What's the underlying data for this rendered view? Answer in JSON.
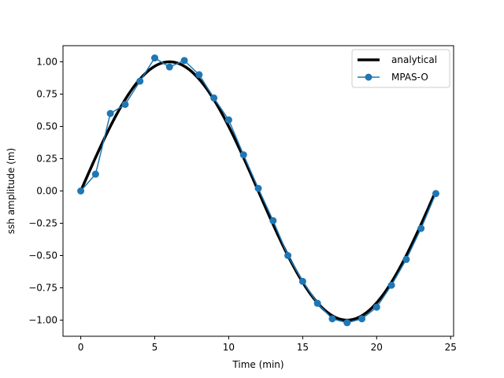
{
  "chart_data": {
    "type": "line",
    "title": "",
    "xlabel": "Time (min)",
    "ylabel": "ssh amplitude (m)",
    "xlim": [
      -1.2,
      25.2
    ],
    "ylim": [
      -1.125,
      1.125
    ],
    "xticks": [
      0,
      5,
      10,
      15,
      20,
      25
    ],
    "xtick_labels": [
      "0",
      "5",
      "10",
      "15",
      "20",
      "25"
    ],
    "yticks": [
      -1.0,
      -0.75,
      -0.5,
      -0.25,
      0.0,
      0.25,
      0.5,
      0.75,
      1.0
    ],
    "ytick_labels": [
      "−1.00",
      "−0.75",
      "−0.50",
      "−0.25",
      "0.00",
      "0.25",
      "0.50",
      "0.75",
      "1.00"
    ],
    "grid": false,
    "legend_position": "top-right",
    "series": [
      {
        "name": "analytical",
        "style": "line",
        "color": "#000000",
        "function": "sin",
        "amplitude": 1.0,
        "period": 24,
        "x_range": [
          0,
          24
        ]
      },
      {
        "name": "MPAS-O",
        "style": "line-marker",
        "color": "#1f77b4",
        "x": [
          0,
          1,
          2,
          3,
          4,
          5,
          6,
          7,
          8,
          9,
          10,
          11,
          12,
          13,
          14,
          15,
          16,
          17,
          18,
          19,
          20,
          21,
          22,
          23,
          24
        ],
        "y": [
          0.0,
          0.13,
          0.6,
          0.67,
          0.85,
          1.03,
          0.96,
          1.01,
          0.9,
          0.72,
          0.55,
          0.28,
          0.02,
          -0.23,
          -0.5,
          -0.7,
          -0.87,
          -0.99,
          -1.02,
          -0.99,
          -0.9,
          -0.73,
          -0.53,
          -0.29,
          -0.02
        ]
      }
    ]
  }
}
